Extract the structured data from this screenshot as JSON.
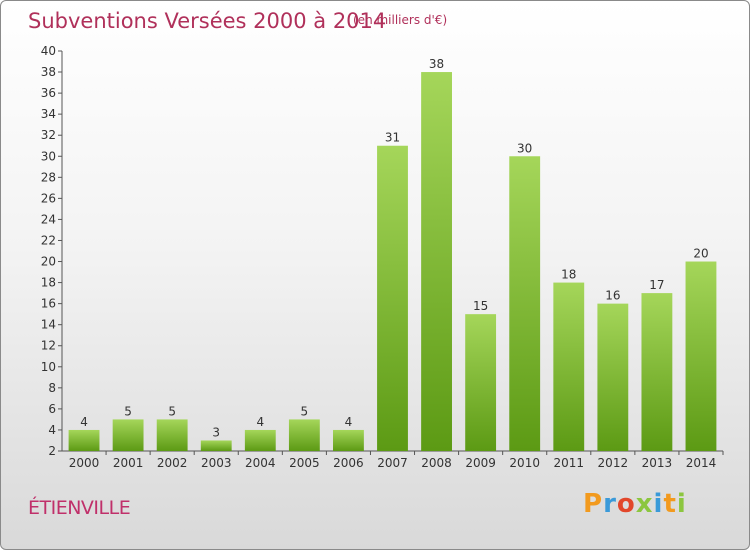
{
  "header": {
    "title": "Subventions Versées 2000 à 2014",
    "unit": "(en milliers d'€)"
  },
  "footer": {
    "commune": "ÉTIENVILLE",
    "logo_text": "Proxiti"
  },
  "colors": {
    "title": "#b0305a",
    "bar_top": "#a5d65a",
    "bar_bottom": "#5c9a14",
    "logo": [
      "#f29a1e",
      "#3a9ad9",
      "#e2472b",
      "#8cc63f",
      "#3a9ad9",
      "#f29a1e",
      "#8cc63f"
    ]
  },
  "chart_data": {
    "type": "bar",
    "title": "Subventions Versées 2000 à 2014",
    "subtitle": "(en milliers d'€)",
    "xlabel": "",
    "ylabel": "",
    "categories": [
      "2000",
      "2001",
      "2002",
      "2003",
      "2004",
      "2005",
      "2006",
      "2007",
      "2008",
      "2009",
      "2010",
      "2011",
      "2012",
      "2013",
      "2014"
    ],
    "values": [
      4,
      5,
      5,
      3,
      4,
      5,
      4,
      31,
      38,
      15,
      30,
      18,
      16,
      17,
      20
    ],
    "ylim": [
      2,
      40
    ],
    "yticks": [
      2,
      4,
      6,
      8,
      10,
      12,
      14,
      16,
      18,
      20,
      22,
      24,
      26,
      28,
      30,
      32,
      34,
      36,
      38,
      40
    ],
    "grid": false,
    "legend": "none"
  }
}
